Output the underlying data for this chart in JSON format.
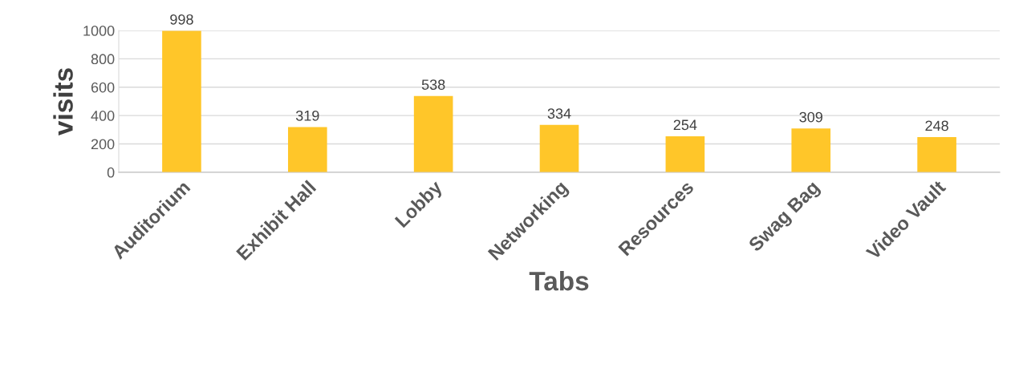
{
  "chart_data": {
    "type": "bar",
    "xlabel": "Tabs",
    "ylabel": "visits",
    "categories": [
      "Auditorium",
      "Exhibit Hall",
      "Lobby",
      "Networking",
      "Resources",
      "Swag Bag",
      "Video Vault"
    ],
    "values": [
      998,
      319,
      538,
      334,
      254,
      309,
      248
    ],
    "color": "#ffc629",
    "ylim": [
      0,
      1000
    ],
    "yticks": [
      0,
      200,
      400,
      600,
      800,
      1000
    ],
    "grid": "y",
    "data_labels": true,
    "legend": false
  }
}
